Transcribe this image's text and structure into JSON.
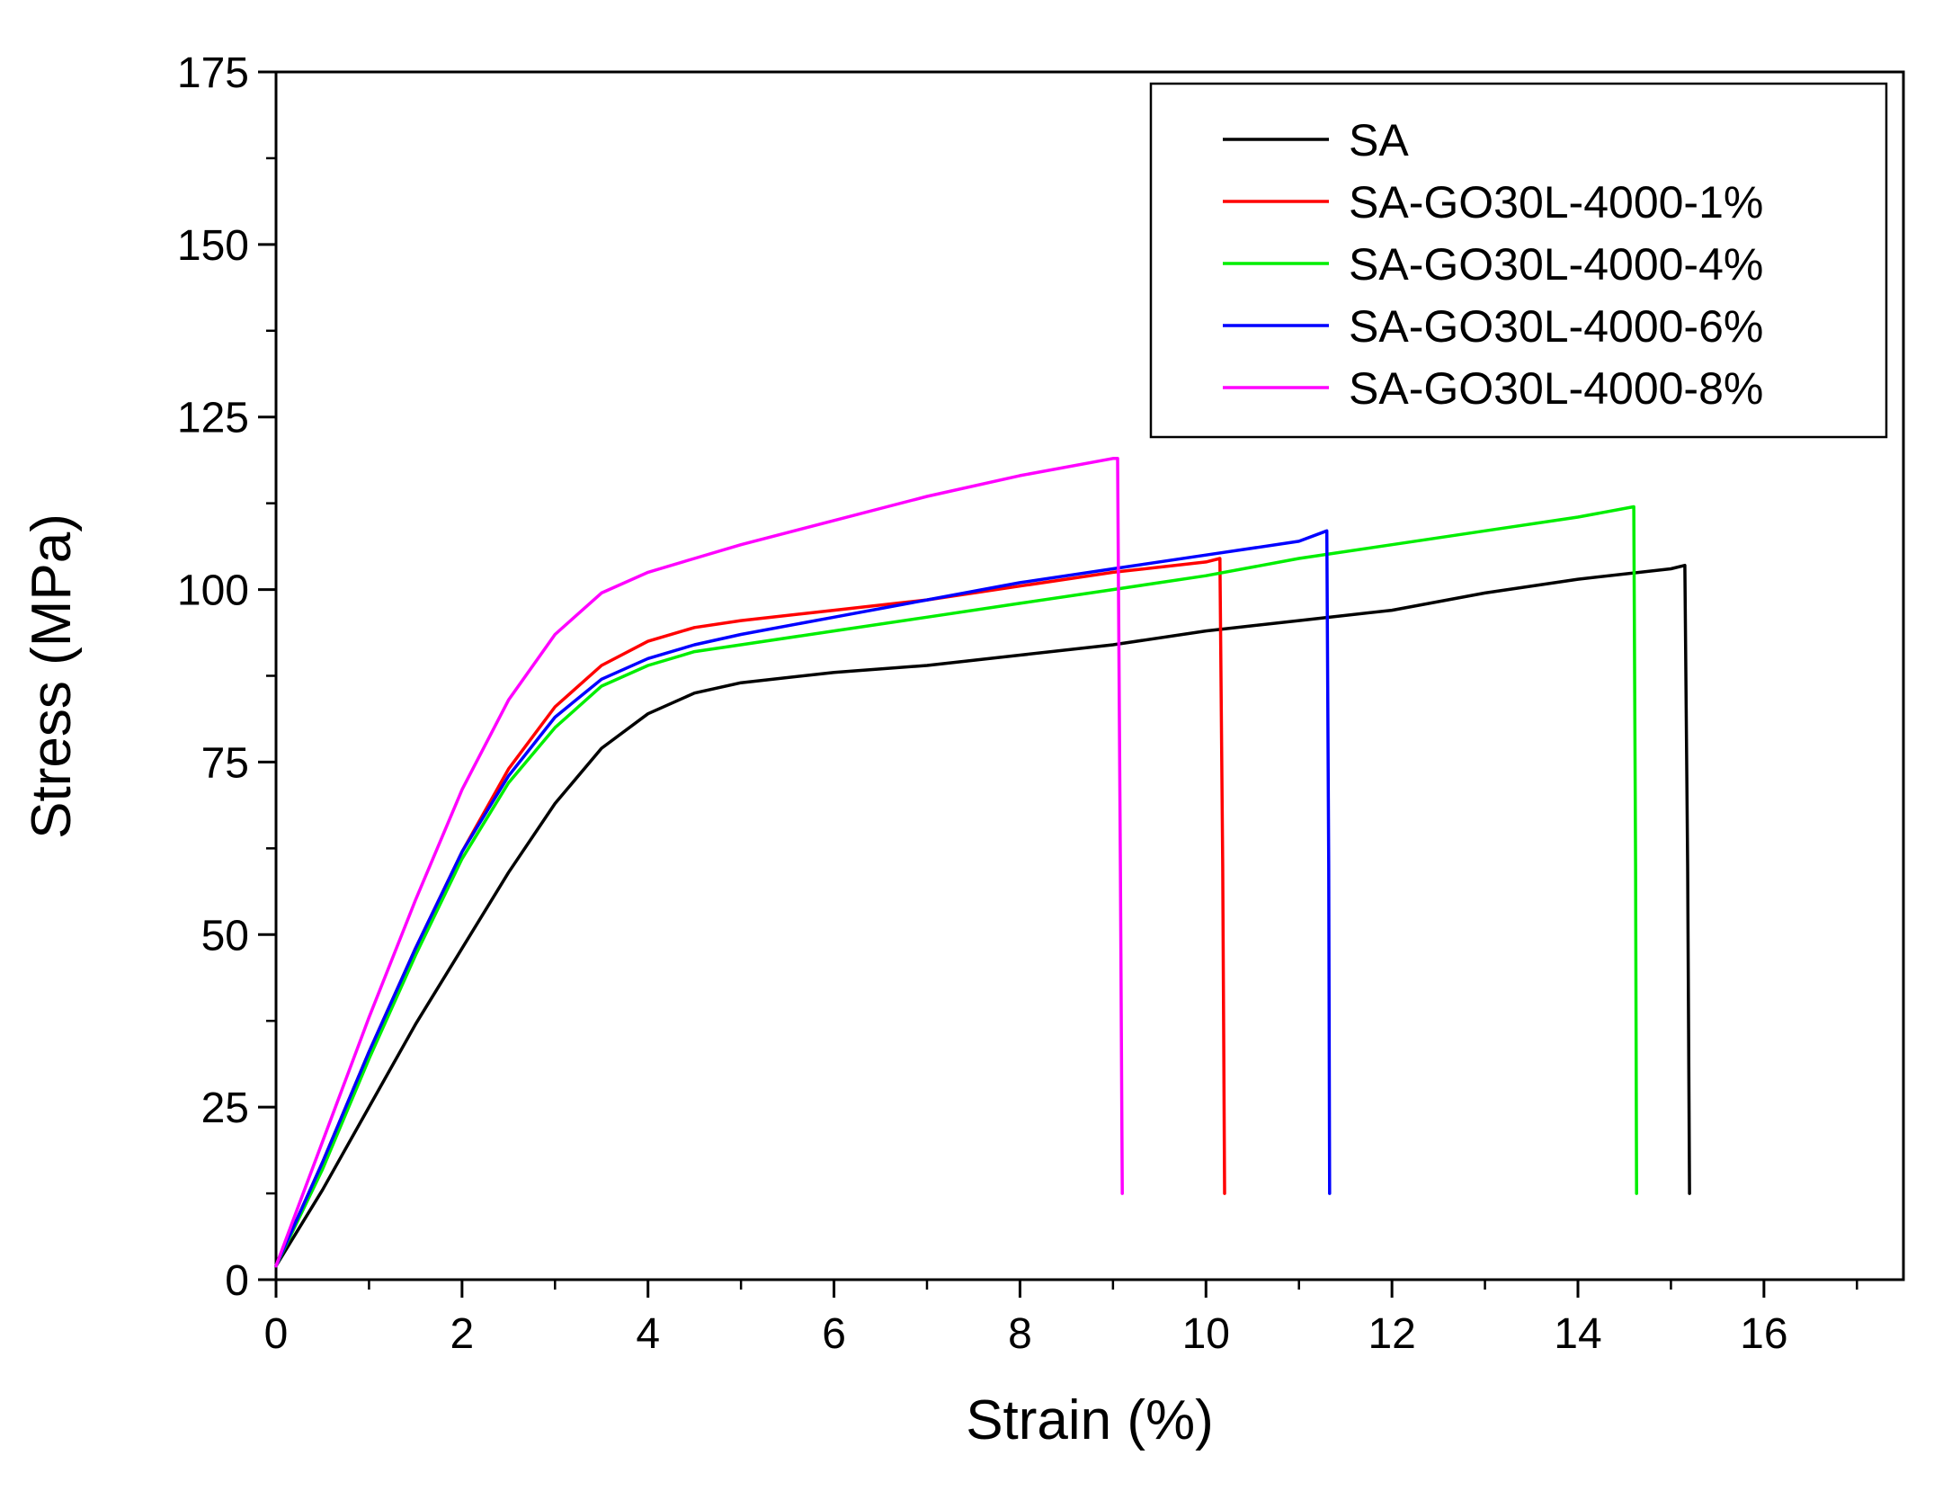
{
  "chart_data": {
    "type": "line",
    "title": "",
    "xlabel": "Strain (%)",
    "ylabel": "Stress (MPa)",
    "xlim": [
      0,
      17.5
    ],
    "ylim": [
      0,
      175
    ],
    "xticks": [
      0,
      2,
      4,
      6,
      8,
      10,
      12,
      14,
      16
    ],
    "xticks_minor": [
      1,
      3,
      5,
      7,
      9,
      11,
      13,
      15,
      17
    ],
    "yticks": [
      0,
      25,
      50,
      75,
      100,
      125,
      150,
      175
    ],
    "yticks_minor": [
      12.5,
      37.5,
      62.5,
      87.5,
      112.5,
      137.5,
      162.5
    ],
    "grid": false,
    "legend_position": "top-right",
    "series": [
      {
        "name": "SA",
        "color": "#000000",
        "x": [
          0,
          0.5,
          1,
          1.5,
          2,
          2.5,
          3,
          3.5,
          4,
          4.5,
          5,
          6,
          7,
          8,
          9,
          10,
          11,
          12,
          13,
          14,
          15,
          15.15,
          15.18,
          15.2
        ],
        "y": [
          2,
          13,
          25,
          37,
          48,
          59,
          69,
          77,
          82,
          85,
          86.5,
          88,
          89,
          90.5,
          92,
          94,
          95.5,
          97,
          99.5,
          101.5,
          103,
          103.5,
          60,
          12.5
        ]
      },
      {
        "name": "SA-GO30L-4000-1%",
        "color": "#ff0000",
        "x": [
          0,
          0.5,
          1,
          1.5,
          2,
          2.5,
          3,
          3.5,
          4,
          4.5,
          5,
          6,
          7,
          8,
          9,
          10,
          10.15,
          10.18,
          10.2
        ],
        "y": [
          2,
          17,
          33,
          48,
          62,
          74,
          83,
          89,
          92.5,
          94.5,
          95.5,
          97,
          98.5,
          100.5,
          102.5,
          104,
          104.5,
          60,
          12.5
        ]
      },
      {
        "name": "SA-GO30L-4000-4%",
        "color": "#00ee00",
        "x": [
          0,
          0.5,
          1,
          1.5,
          2,
          2.5,
          3,
          3.5,
          4,
          4.5,
          5,
          6,
          7,
          8,
          9,
          10,
          11,
          12,
          13,
          14,
          14.6,
          14.62,
          14.63
        ],
        "y": [
          2,
          16,
          32,
          47,
          61,
          72,
          80,
          86,
          89,
          91,
          92,
          94,
          96,
          98,
          100,
          102,
          104.5,
          106.5,
          108.5,
          110.5,
          112,
          60,
          12.5
        ]
      },
      {
        "name": "SA-GO30L-4000-6%",
        "color": "#0000ff",
        "x": [
          0,
          0.5,
          1,
          1.5,
          2,
          2.5,
          3,
          3.5,
          4,
          4.5,
          5,
          6,
          7,
          8,
          9,
          10,
          11,
          11.3,
          11.32,
          11.33
        ],
        "y": [
          2,
          17,
          33,
          48,
          62,
          73,
          81.5,
          87,
          90,
          92,
          93.5,
          96,
          98.5,
          101,
          103,
          105,
          107,
          108.5,
          60,
          12.5
        ]
      },
      {
        "name": "SA-GO30L-4000-8%",
        "color": "#ff00ff",
        "x": [
          0,
          0.5,
          1,
          1.5,
          2,
          2.5,
          3,
          3.5,
          4,
          4.5,
          5,
          6,
          7,
          8,
          9,
          9.05,
          9.08,
          9.1
        ],
        "y": [
          2,
          20,
          38,
          55,
          71,
          84,
          93.5,
          99.5,
          102.5,
          104.5,
          106.5,
          110,
          113.5,
          116.5,
          119,
          119,
          60,
          12.5
        ]
      }
    ]
  }
}
